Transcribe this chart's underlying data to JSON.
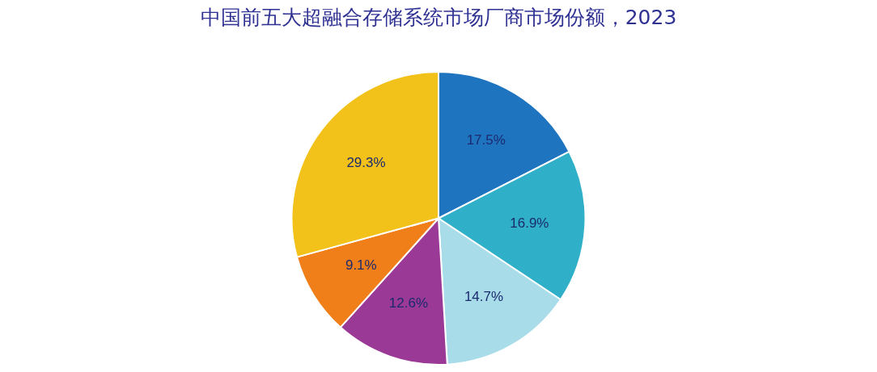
{
  "chart_data": {
    "type": "pie",
    "title": "中国前五大超融合存储系统市场厂商市场份额，2023",
    "categories": [
      null,
      null,
      null,
      null,
      null,
      null
    ],
    "values": [
      17.5,
      16.9,
      14.7,
      12.6,
      9.1,
      29.3
    ],
    "colors": [
      "#1f74c0",
      "#2fb0c8",
      "#a8dce8",
      "#9b3a96",
      "#f07f1a",
      "#f2c21a"
    ],
    "value_labels": [
      "17.5%",
      "16.9%",
      "14.7%",
      "12.6%",
      "9.1%",
      "29.3%"
    ],
    "legend": false
  }
}
